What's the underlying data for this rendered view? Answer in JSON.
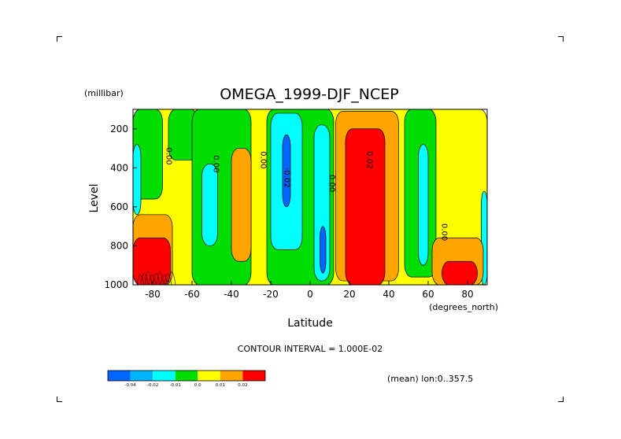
{
  "chart_data": {
    "type": "contour",
    "title": "OMEGA_1999-DJF_NCEP",
    "xlabel": "Latitude",
    "xunits": "(degrees_north)",
    "ylabel": "Level",
    "yunits": "(millibar)",
    "xlim": [
      -90,
      90
    ],
    "ylim": [
      1000,
      100
    ],
    "xticks": [
      -80,
      -60,
      -40,
      -20,
      0,
      20,
      40,
      60,
      80
    ],
    "yticks": [
      200,
      400,
      600,
      800,
      1000
    ],
    "contour_interval_text": "CONTOUR INTERVAL = 1.000E-02",
    "mean_text": "(mean) lon:0..357.5",
    "contour_labels": [
      {
        "x": -73,
        "y": 340,
        "text": "0.00"
      },
      {
        "x": -49,
        "y": 380,
        "text": "0.00"
      },
      {
        "x": -25,
        "y": 360,
        "text": "0.00"
      },
      {
        "x": -13,
        "y": 450,
        "text": "-0.02"
      },
      {
        "x": 10,
        "y": 480,
        "text": "0.00"
      },
      {
        "x": 29,
        "y": 360,
        "text": "0.02"
      },
      {
        "x": 67,
        "y": 730,
        "text": "0.00"
      }
    ],
    "regions": [
      {
        "level": "yellow",
        "lon": -90,
        "lat": 0,
        "shape": "rect",
        "x": [
          -90,
          90
        ],
        "y": [
          100,
          1000
        ]
      },
      {
        "level": "green",
        "x": [
          -72,
          -57
        ],
        "y": [
          100,
          360
        ]
      },
      {
        "level": "green",
        "x": [
          -60,
          -30
        ],
        "y": [
          100,
          1000
        ]
      },
      {
        "level": "green",
        "x": [
          -22,
          12
        ],
        "y": [
          100,
          1000
        ]
      },
      {
        "level": "green",
        "x": [
          48,
          64
        ],
        "y": [
          100,
          960
        ]
      },
      {
        "level": "green",
        "x": [
          -90,
          -75
        ],
        "y": [
          100,
          560
        ]
      },
      {
        "level": "orange",
        "x": [
          -40,
          -30
        ],
        "y": [
          300,
          880
        ]
      },
      {
        "level": "cyan",
        "x": [
          -55,
          -47
        ],
        "y": [
          380,
          800
        ]
      },
      {
        "level": "cyan",
        "x": [
          -20,
          -4
        ],
        "y": [
          120,
          820
        ]
      },
      {
        "level": "cyan",
        "x": [
          2,
          10
        ],
        "y": [
          180,
          980
        ]
      },
      {
        "level": "cyan",
        "x": [
          55,
          60
        ],
        "y": [
          280,
          900
        ]
      },
      {
        "level": "cyan",
        "x": [
          -90,
          -86
        ],
        "y": [
          280,
          640
        ]
      },
      {
        "level": "cyan",
        "x": [
          87,
          90
        ],
        "y": [
          520,
          1000
        ]
      },
      {
        "level": "blue",
        "x": [
          -14,
          -10
        ],
        "y": [
          230,
          600
        ]
      },
      {
        "level": "blue",
        "x": [
          5,
          8
        ],
        "y": [
          700,
          940
        ]
      },
      {
        "level": "orange",
        "x": [
          13,
          45
        ],
        "y": [
          110,
          980
        ]
      },
      {
        "level": "red",
        "x": [
          18,
          38
        ],
        "y": [
          200,
          1000
        ]
      },
      {
        "level": "orange",
        "x": [
          -90,
          -70
        ],
        "y": [
          640,
          1000
        ]
      },
      {
        "level": "red",
        "x": [
          -90,
          -71
        ],
        "y": [
          760,
          1000
        ]
      },
      {
        "level": "orange",
        "x": [
          62,
          88
        ],
        "y": [
          760,
          1000
        ]
      },
      {
        "level": "red",
        "x": [
          67,
          85
        ],
        "y": [
          880,
          1000
        ]
      }
    ],
    "colorbar": {
      "labels": [
        "-0.04",
        "-0.02",
        "-0.01",
        "0.0",
        "0.01",
        "0.02"
      ],
      "colors": [
        "#0066ff",
        "#00b4ff",
        "#00ffff",
        "#00dd00",
        "#ffff00",
        "#ffa500",
        "#ff0000"
      ]
    }
  }
}
